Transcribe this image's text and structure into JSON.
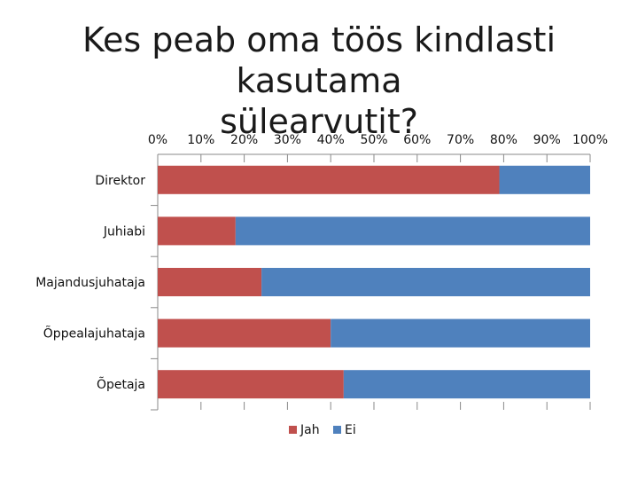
{
  "chart_data": {
    "type": "bar",
    "orientation": "horizontal",
    "stacked": true,
    "title_lines": [
      "Kes peab oma töös kindlasti kasutama",
      "sülearvutit?"
    ],
    "categories": [
      "Direktor",
      "Juhiabi",
      "Majandusjuhataja",
      "Õppealajuhataja",
      "Õpetaja"
    ],
    "series": [
      {
        "name": "Jah",
        "color": "#c0504d",
        "values": [
          79,
          18,
          24,
          40,
          43
        ]
      },
      {
        "name": "Ei",
        "color": "#4f81bd",
        "values": [
          21,
          82,
          76,
          60,
          57
        ]
      }
    ],
    "xlim": [
      0,
      100
    ],
    "xticks": [
      "0%",
      "10%",
      "20%",
      "30%",
      "40%",
      "50%",
      "60%",
      "70%",
      "80%",
      "90%",
      "100%"
    ],
    "xaxis_position": "top",
    "grid": false,
    "legend_position": "bottom"
  }
}
